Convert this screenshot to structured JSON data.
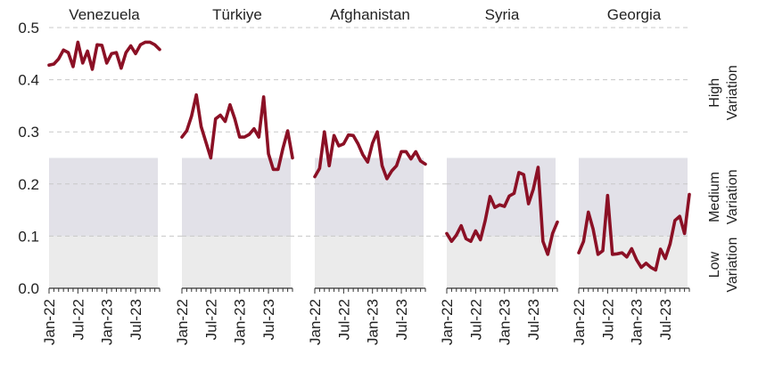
{
  "chart_data": {
    "type": "line",
    "layout": "small-multiples",
    "ylim": [
      0,
      0.5
    ],
    "yticks": [
      "0.0",
      "0.1",
      "0.2",
      "0.3",
      "0.4",
      "0.5"
    ],
    "xticks": [
      "Jan-22",
      "Jul-22",
      "Jan-23",
      "Jul-23"
    ],
    "grid": "horizontal dashed",
    "line_color": "#8b1025",
    "bands": [
      {
        "name": "Low Variation",
        "line1": "Low",
        "line2": "Variation",
        "range": [
          0,
          0.1
        ],
        "color": "#ebebeb"
      },
      {
        "name": "Medium Variation",
        "line1": "Medium",
        "line2": "Variation",
        "range": [
          0.1,
          0.25
        ],
        "color": "#e2e1e8"
      },
      {
        "name": "High Variation",
        "line1": "High",
        "line2": "Variation",
        "range": [
          0.25,
          0.5
        ],
        "color": "#ffffff"
      }
    ],
    "panels": [
      {
        "title": "Venezuela",
        "start": "2022-01",
        "values": [
          0.428,
          0.43,
          0.44,
          0.457,
          0.452,
          0.425,
          0.472,
          0.432,
          0.455,
          0.42,
          0.467,
          0.466,
          0.432,
          0.45,
          0.452,
          0.422,
          0.452,
          0.465,
          0.45,
          0.467,
          0.472,
          0.472,
          0.467,
          0.458
        ]
      },
      {
        "title": "Türkiye",
        "start": "2022-01",
        "values": [
          0.29,
          0.302,
          0.33,
          0.371,
          0.31,
          0.28,
          0.25,
          0.325,
          0.332,
          0.32,
          0.352,
          0.325,
          0.29,
          0.29,
          0.295,
          0.306,
          0.29,
          0.367,
          0.258,
          0.228,
          0.228,
          0.268,
          0.302,
          0.25
        ]
      },
      {
        "title": "Afghanistan",
        "start": "2022-01",
        "values": [
          0.214,
          0.23,
          0.3,
          0.235,
          0.293,
          0.273,
          0.277,
          0.294,
          0.293,
          0.277,
          0.256,
          0.242,
          0.278,
          0.3,
          0.235,
          0.21,
          0.225,
          0.235,
          0.262,
          0.262,
          0.248,
          0.262,
          0.244,
          0.238
        ]
      },
      {
        "title": "Syria",
        "start": "2022-01",
        "values": [
          0.105,
          0.09,
          0.102,
          0.12,
          0.095,
          0.09,
          0.11,
          0.093,
          0.13,
          0.176,
          0.155,
          0.16,
          0.157,
          0.177,
          0.182,
          0.222,
          0.218,
          0.162,
          0.19,
          0.232,
          0.09,
          0.065,
          0.105,
          0.127
        ]
      },
      {
        "title": "Georgia",
        "start": "2022-01",
        "values": [
          0.068,
          0.09,
          0.146,
          0.113,
          0.065,
          0.072,
          0.178,
          0.065,
          0.066,
          0.068,
          0.06,
          0.076,
          0.055,
          0.04,
          0.048,
          0.04,
          0.035,
          0.075,
          0.057,
          0.085,
          0.13,
          0.138,
          0.105,
          0.18
        ]
      }
    ]
  }
}
